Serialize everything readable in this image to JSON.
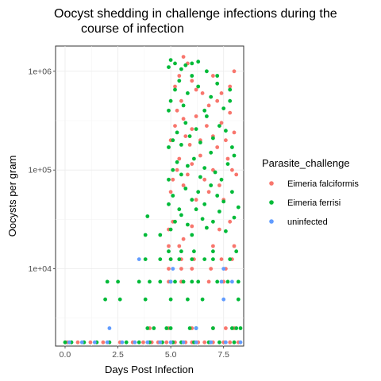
{
  "chart_data": {
    "type": "scatter",
    "title_lines": [
      "Oocyst shedding in challenge infections during the",
      "course of infection"
    ],
    "xlabel": "Days Post Infection",
    "ylabel": "Oocysts per gram",
    "x_ticks": [
      "0.0",
      "2.5",
      "5.0",
      "7.5"
    ],
    "x_tick_values": [
      0,
      2.5,
      5,
      7.5
    ],
    "y_ticks": [
      "1e+04",
      "1e+05",
      "1e+06"
    ],
    "y_tick_values": [
      10000,
      100000,
      1000000
    ],
    "xlim": [
      -0.45,
      8.45
    ],
    "ylim": [
      1650,
      1800000
    ],
    "y_scale": "log10",
    "grid": true,
    "legend_position": "right",
    "legend_title": "Parasite_challenge",
    "series": [
      {
        "name": "Eimeria falciformis",
        "color": "#F8766D",
        "points": [
          [
            0.1,
            1800
          ],
          [
            0.6,
            1800
          ],
          [
            1.2,
            1800
          ],
          [
            1.8,
            1800
          ],
          [
            2.6,
            1800
          ],
          [
            3.2,
            1800
          ],
          [
            3.7,
            1800
          ],
          [
            4.1,
            1800
          ],
          [
            4.4,
            1800
          ],
          [
            4.8,
            1800
          ],
          [
            5.2,
            1800
          ],
          [
            5.7,
            1800
          ],
          [
            6.0,
            1800
          ],
          [
            6.3,
            1800
          ],
          [
            6.6,
            1800
          ],
          [
            7.0,
            1800
          ],
          [
            7.5,
            1800
          ],
          [
            7.8,
            1800
          ],
          [
            8.2,
            1800
          ],
          [
            4.0,
            2500
          ],
          [
            4.9,
            2500
          ],
          [
            6.0,
            2500
          ],
          [
            7.0,
            2500
          ],
          [
            7.6,
            2500
          ],
          [
            8.0,
            2500
          ],
          [
            4.9,
            7400
          ],
          [
            5.5,
            7400
          ],
          [
            6.8,
            7400
          ],
          [
            7.5,
            7400
          ],
          [
            4.9,
            10000
          ],
          [
            5.5,
            10000
          ],
          [
            6.0,
            10000
          ],
          [
            6.9,
            10000
          ],
          [
            7.6,
            10000
          ],
          [
            5.0,
            12500
          ],
          [
            5.5,
            12500
          ],
          [
            6.1,
            12500
          ],
          [
            7.4,
            12500
          ],
          [
            7.9,
            12500
          ],
          [
            4.9,
            17000
          ],
          [
            5.4,
            17000
          ],
          [
            7.0,
            17000
          ],
          [
            8.0,
            17000
          ],
          [
            4.9,
            25000
          ],
          [
            5.1,
            30000
          ],
          [
            5.6,
            20000
          ],
          [
            6.0,
            27000
          ],
          [
            7.3,
            25000
          ],
          [
            7.8,
            30000
          ],
          [
            5.0,
            60000
          ],
          [
            5.1,
            80000
          ],
          [
            5.3,
            100000
          ],
          [
            5.4,
            130000
          ],
          [
            5.6,
            70000
          ],
          [
            5.8,
            90000
          ],
          [
            6.0,
            115000
          ],
          [
            6.2,
            50000
          ],
          [
            6.4,
            140000
          ],
          [
            6.6,
            80000
          ],
          [
            6.8,
            60000
          ],
          [
            7.0,
            100000
          ],
          [
            7.2,
            170000
          ],
          [
            7.3,
            70000
          ],
          [
            7.5,
            50000
          ],
          [
            7.7,
            130000
          ],
          [
            7.9,
            100000
          ],
          [
            8.1,
            90000
          ],
          [
            5.0,
            200000
          ],
          [
            5.2,
            280000
          ],
          [
            5.3,
            400000
          ],
          [
            5.5,
            500000
          ],
          [
            5.6,
            330000
          ],
          [
            5.7,
            220000
          ],
          [
            5.9,
            180000
          ],
          [
            6.0,
            260000
          ],
          [
            6.2,
            350000
          ],
          [
            6.4,
            200000
          ],
          [
            6.5,
            600000
          ],
          [
            6.7,
            280000
          ],
          [
            6.8,
            450000
          ],
          [
            7.0,
            220000
          ],
          [
            7.2,
            500000
          ],
          [
            7.4,
            300000
          ],
          [
            7.6,
            200000
          ],
          [
            7.8,
            380000
          ],
          [
            8.0,
            240000
          ],
          [
            5.2,
            700000
          ],
          [
            5.4,
            900000
          ],
          [
            5.6,
            1400000
          ],
          [
            5.8,
            1200000
          ],
          [
            6.0,
            800000
          ],
          [
            6.2,
            650000
          ],
          [
            7.0,
            900000
          ],
          [
            7.4,
            600000
          ],
          [
            7.8,
            700000
          ],
          [
            8.0,
            1000000
          ]
        ]
      },
      {
        "name": "Eimeria ferrisi",
        "color": "#00BA38",
        "points": [
          [
            0.0,
            1800
          ],
          [
            0.3,
            1800
          ],
          [
            0.9,
            1800
          ],
          [
            1.5,
            1800
          ],
          [
            2.1,
            1800
          ],
          [
            2.9,
            1800
          ],
          [
            3.5,
            1800
          ],
          [
            4.0,
            1800
          ],
          [
            4.6,
            1800
          ],
          [
            5.1,
            1800
          ],
          [
            5.5,
            1800
          ],
          [
            6.1,
            1800
          ],
          [
            6.8,
            1800
          ],
          [
            7.3,
            1800
          ],
          [
            8.0,
            1800
          ],
          [
            3.9,
            2500
          ],
          [
            4.2,
            2500
          ],
          [
            4.8,
            2500
          ],
          [
            5.0,
            2500
          ],
          [
            5.9,
            2500
          ],
          [
            6.2,
            2500
          ],
          [
            7.0,
            2500
          ],
          [
            7.9,
            2500
          ],
          [
            8.1,
            2500
          ],
          [
            8.3,
            2500
          ],
          [
            1.9,
            4900
          ],
          [
            2.6,
            4900
          ],
          [
            3.8,
            4900
          ],
          [
            5.0,
            4900
          ],
          [
            5.8,
            4900
          ],
          [
            6.5,
            4900
          ],
          [
            8.2,
            4900
          ],
          [
            2.0,
            7400
          ],
          [
            2.5,
            7400
          ],
          [
            3.5,
            7400
          ],
          [
            4.0,
            7400
          ],
          [
            4.5,
            7400
          ],
          [
            5.0,
            7400
          ],
          [
            5.2,
            7400
          ],
          [
            5.6,
            7400
          ],
          [
            6.0,
            7400
          ],
          [
            6.3,
            7400
          ],
          [
            7.2,
            7400
          ],
          [
            7.7,
            7400
          ],
          [
            8.2,
            7400
          ],
          [
            3.8,
            12500
          ],
          [
            4.5,
            12500
          ],
          [
            5.0,
            12500
          ],
          [
            5.4,
            12500
          ],
          [
            6.0,
            12500
          ],
          [
            6.6,
            12500
          ],
          [
            7.0,
            12500
          ],
          [
            7.8,
            12500
          ],
          [
            4.9,
            15000
          ],
          [
            5.5,
            15000
          ],
          [
            6.1,
            15000
          ],
          [
            7.0,
            15000
          ],
          [
            8.1,
            15000
          ],
          [
            3.8,
            22000
          ],
          [
            4.5,
            22000
          ],
          [
            5.0,
            25000
          ],
          [
            5.2,
            30000
          ],
          [
            5.5,
            35000
          ],
          [
            5.8,
            28000
          ],
          [
            6.0,
            22000
          ],
          [
            6.2,
            40000
          ],
          [
            6.5,
            32000
          ],
          [
            6.7,
            26000
          ],
          [
            7.0,
            30000
          ],
          [
            7.3,
            38000
          ],
          [
            7.6,
            24000
          ],
          [
            8.0,
            33000
          ],
          [
            3.9,
            34000
          ],
          [
            4.9,
            45000
          ],
          [
            5.1,
            55000
          ],
          [
            5.4,
            40000
          ],
          [
            5.7,
            65000
          ],
          [
            6.0,
            50000
          ],
          [
            6.3,
            60000
          ],
          [
            6.6,
            45000
          ],
          [
            6.9,
            70000
          ],
          [
            7.2,
            55000
          ],
          [
            7.5,
            48000
          ],
          [
            7.9,
            60000
          ],
          [
            8.2,
            42000
          ],
          [
            4.9,
            80000
          ],
          [
            5.1,
            100000
          ],
          [
            5.3,
            120000
          ],
          [
            5.5,
            90000
          ],
          [
            5.8,
            110000
          ],
          [
            6.1,
            130000
          ],
          [
            6.4,
            85000
          ],
          [
            6.6,
            105000
          ],
          [
            6.9,
            150000
          ],
          [
            7.1,
            95000
          ],
          [
            7.4,
            80000
          ],
          [
            7.7,
            115000
          ],
          [
            8.0,
            140000
          ],
          [
            4.9,
            170000
          ],
          [
            5.1,
            200000
          ],
          [
            5.3,
            240000
          ],
          [
            5.5,
            180000
          ],
          [
            5.7,
            300000
          ],
          [
            5.9,
            220000
          ],
          [
            6.2,
            260000
          ],
          [
            6.4,
            190000
          ],
          [
            6.7,
            350000
          ],
          [
            7.0,
            210000
          ],
          [
            7.3,
            280000
          ],
          [
            7.6,
            250000
          ],
          [
            7.9,
            170000
          ],
          [
            4.9,
            400000
          ],
          [
            5.0,
            500000
          ],
          [
            5.2,
            650000
          ],
          [
            5.4,
            800000
          ],
          [
            5.6,
            450000
          ],
          [
            5.8,
            600000
          ],
          [
            6.0,
            900000
          ],
          [
            6.3,
            700000
          ],
          [
            6.6,
            400000
          ],
          [
            6.9,
            550000
          ],
          [
            7.2,
            750000
          ],
          [
            7.5,
            420000
          ],
          [
            7.8,
            500000
          ],
          [
            4.9,
            1100000
          ],
          [
            5.0,
            1300000
          ],
          [
            5.2,
            1200000
          ],
          [
            5.5,
            1050000
          ],
          [
            5.7,
            1150000
          ],
          [
            6.0,
            1200000
          ],
          [
            6.3,
            1250000
          ],
          [
            6.7,
            1000000
          ],
          [
            7.2,
            900000
          ],
          [
            7.8,
            650000
          ]
        ]
      },
      {
        "name": "uninfected",
        "color": "#619CFF",
        "points": [
          [
            0.2,
            1800
          ],
          [
            0.8,
            1800
          ],
          [
            1.4,
            1800
          ],
          [
            2.0,
            1800
          ],
          [
            2.7,
            1800
          ],
          [
            3.3,
            1800
          ],
          [
            3.9,
            1800
          ],
          [
            4.5,
            1800
          ],
          [
            5.0,
            1800
          ],
          [
            5.6,
            1800
          ],
          [
            6.2,
            1800
          ],
          [
            6.9,
            1800
          ],
          [
            7.6,
            1800
          ],
          [
            8.3,
            1800
          ],
          [
            2.1,
            2500
          ],
          [
            6.2,
            2500
          ],
          [
            7.5,
            4900
          ],
          [
            3.5,
            12500
          ],
          [
            5.1,
            10000
          ],
          [
            5.0,
            7400
          ],
          [
            7.4,
            7400
          ],
          [
            7.9,
            7400
          ],
          [
            7.5,
            10000
          ]
        ]
      }
    ]
  }
}
